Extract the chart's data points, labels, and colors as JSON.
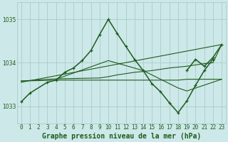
{
  "title": "Graphe pression niveau de la mer (hPa)",
  "bg_color": "#cde8e8",
  "grid_color": "#a8cccc",
  "dark_green": "#1e5c1e",
  "ylim": [
    1032.6,
    1035.4
  ],
  "yticks": [
    1033,
    1034,
    1035
  ],
  "xticks": [
    0,
    1,
    2,
    3,
    4,
    5,
    6,
    7,
    8,
    9,
    10,
    11,
    12,
    13,
    14,
    15,
    16,
    17,
    18,
    19,
    20,
    21,
    22,
    23
  ],
  "tick_fontsize": 5.5,
  "title_fontsize": 7.0,
  "main_x": [
    0,
    1,
    3,
    4,
    5,
    6,
    7,
    8,
    9,
    10,
    11,
    12,
    13,
    14,
    15,
    16,
    17,
    18,
    19,
    20,
    21,
    22
  ],
  "main_y": [
    1033.1,
    1033.3,
    1033.55,
    1033.6,
    1033.78,
    1033.88,
    1034.05,
    1034.28,
    1034.65,
    1035.0,
    1034.68,
    1034.38,
    1034.08,
    1033.82,
    1033.52,
    1033.33,
    1033.08,
    1032.85,
    1033.12,
    1033.48,
    1033.82,
    1034.08
  ],
  "line2_x": [
    0,
    23
  ],
  "line2_y": [
    1033.55,
    1034.42
  ],
  "line3_x": [
    0,
    4,
    5,
    6,
    7,
    8,
    9,
    10,
    11,
    12,
    13,
    14,
    18,
    19,
    23
  ],
  "line3_y": [
    1033.58,
    1033.6,
    1033.6,
    1033.6,
    1033.6,
    1033.6,
    1033.6,
    1033.6,
    1033.6,
    1033.6,
    1033.6,
    1033.6,
    1033.6,
    1033.62,
    1033.62
  ],
  "line4_x": [
    0,
    4,
    9,
    10,
    11,
    12,
    13,
    14,
    15,
    16,
    17,
    18,
    19,
    20,
    21,
    22,
    23
  ],
  "line4_y": [
    1033.58,
    1033.63,
    1033.65,
    1033.68,
    1033.72,
    1033.75,
    1033.78,
    1033.8,
    1033.82,
    1033.85,
    1033.88,
    1033.9,
    1033.92,
    1033.95,
    1033.98,
    1034.0,
    1034.42
  ],
  "line5_x": [
    4,
    10,
    14,
    15,
    16,
    17,
    18,
    19,
    23
  ],
  "line5_y": [
    1033.62,
    1034.05,
    1033.82,
    1033.72,
    1033.62,
    1033.52,
    1033.42,
    1033.35,
    1033.62
  ]
}
